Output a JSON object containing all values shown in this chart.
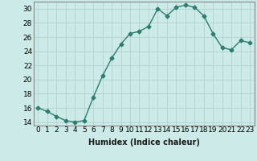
{
  "x": [
    0,
    1,
    2,
    3,
    4,
    5,
    6,
    7,
    8,
    9,
    10,
    11,
    12,
    13,
    14,
    15,
    16,
    17,
    18,
    19,
    20,
    21,
    22,
    23
  ],
  "y": [
    16.0,
    15.5,
    14.8,
    14.2,
    14.0,
    14.2,
    17.5,
    20.5,
    23.0,
    25.0,
    26.5,
    26.8,
    27.5,
    30.0,
    29.0,
    30.2,
    30.5,
    30.2,
    29.0,
    26.5,
    24.5,
    24.2,
    25.5,
    25.2
  ],
  "line_color": "#2e7d6e",
  "marker": "D",
  "marker_size": 2.5,
  "bg_color": "#cceae8",
  "grid_color": "#b0d4d2",
  "xlabel": "Humidex (Indice chaleur)",
  "xlim": [
    -0.5,
    23.5
  ],
  "ylim": [
    13.5,
    31.0
  ],
  "yticks": [
    14,
    16,
    18,
    20,
    22,
    24,
    26,
    28,
    30
  ],
  "xtick_labels": [
    "0",
    "1",
    "2",
    "3",
    "4",
    "5",
    "6",
    "7",
    "8",
    "9",
    "10",
    "11",
    "12",
    "13",
    "14",
    "15",
    "16",
    "17",
    "18",
    "19",
    "20",
    "21",
    "22",
    "23"
  ],
  "xlabel_fontsize": 7,
  "tick_fontsize": 6.5,
  "line_width": 1.0
}
